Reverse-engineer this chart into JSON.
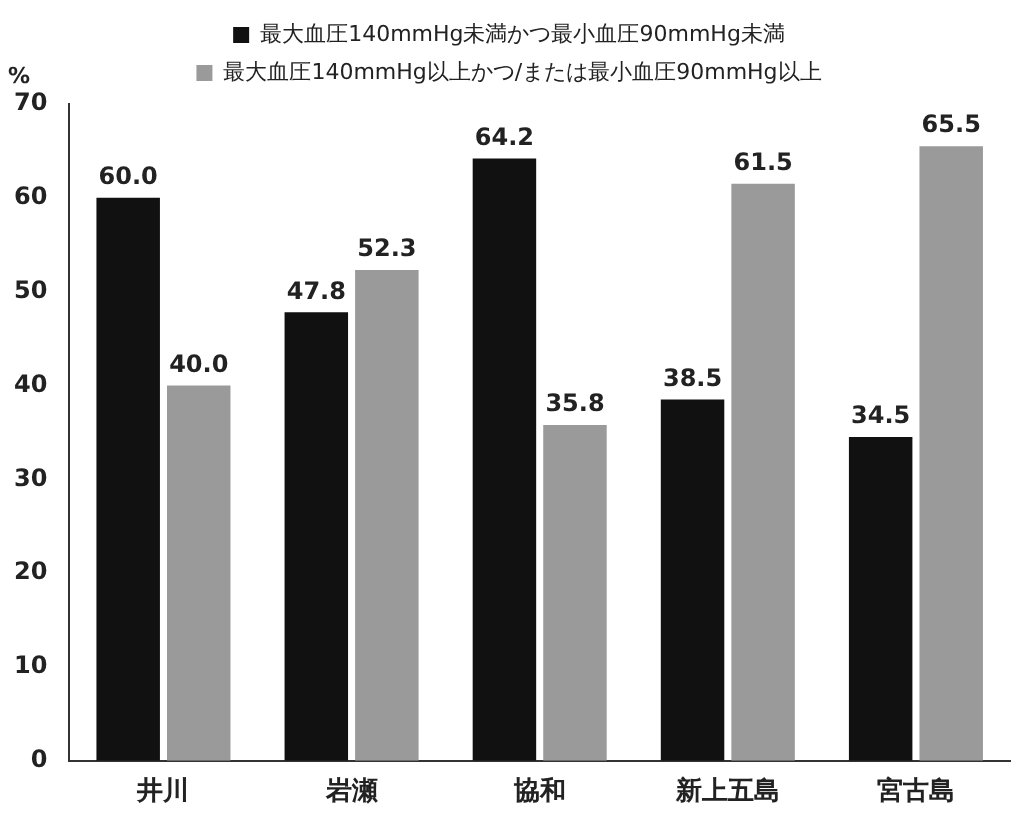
{
  "chart_data": {
    "type": "bar",
    "ylabel": "%",
    "categories": [
      "井川",
      "岩瀬",
      "協和",
      "新上五島",
      "宮古島"
    ],
    "series": [
      {
        "name": "最大血圧140mmHg未満かつ最小血圧90mmHg未満",
        "color": "#111111",
        "values": [
          60.0,
          47.8,
          64.2,
          38.5,
          34.5
        ],
        "value_labels": [
          "60.0",
          "47.8",
          "64.2",
          "38.5",
          "34.5"
        ]
      },
      {
        "name": "最大血圧140mmHg以上かつ/または最小血圧90mmHg以上",
        "color": "#9a9a9a",
        "values": [
          40.0,
          52.3,
          35.8,
          61.5,
          65.5
        ],
        "value_labels": [
          "40.0",
          "52.3",
          "35.8",
          "61.5",
          "65.5"
        ]
      }
    ],
    "ylim": [
      0,
      70
    ],
    "yticks": [
      0,
      10,
      20,
      30,
      40,
      50,
      60,
      70
    ],
    "legend": "top",
    "grid": false
  }
}
